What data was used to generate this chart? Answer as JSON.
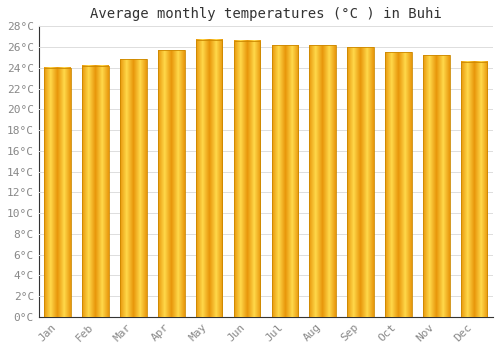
{
  "title": "Average monthly temperatures (°C ) in Buhi",
  "months": [
    "Jan",
    "Feb",
    "Mar",
    "Apr",
    "May",
    "Jun",
    "Jul",
    "Aug",
    "Sep",
    "Oct",
    "Nov",
    "Dec"
  ],
  "values": [
    24.0,
    24.2,
    24.8,
    25.7,
    26.7,
    26.6,
    26.2,
    26.2,
    26.0,
    25.5,
    25.2,
    24.6
  ],
  "bar_color_left": "#F5A800",
  "bar_color_center": "#FFD040",
  "bar_color_right": "#F5A800",
  "bar_edge_color": "#CC8800",
  "background_color": "#FFFFFF",
  "grid_color": "#DDDDDD",
  "ylim": [
    0,
    28
  ],
  "ytick_step": 2,
  "title_fontsize": 10,
  "tick_fontsize": 8,
  "font_family": "monospace"
}
